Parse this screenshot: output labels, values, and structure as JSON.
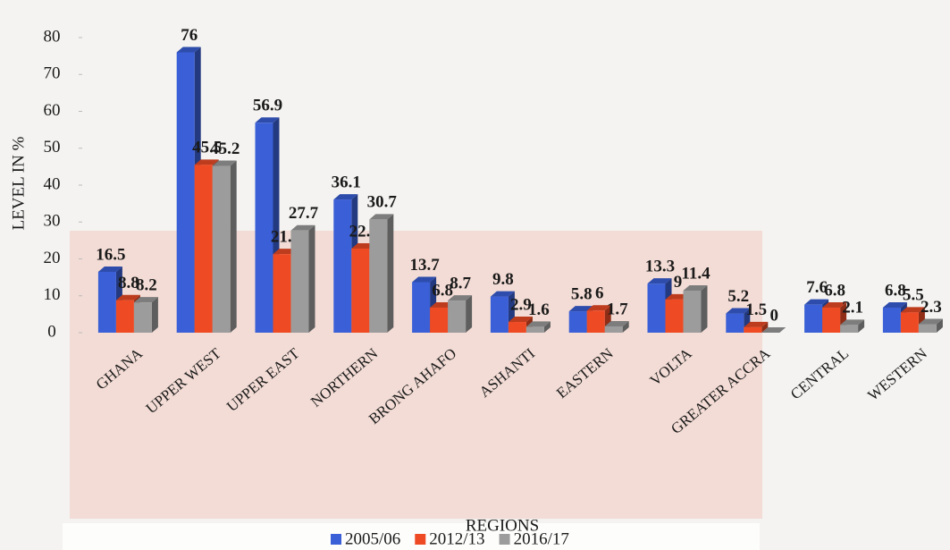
{
  "chart_data": {
    "type": "bar",
    "x_label": "REGIONS",
    "y_label": "LEVEL IN %",
    "categories": [
      "GHANA",
      "UPPER WEST",
      "UPPER EAST",
      "NORTHERN",
      "BRONG AHAFO",
      "ASHANTI",
      "EASTERN",
      "VOLTA",
      "GREATER ACCRA",
      "CENTRAL",
      "WESTERN"
    ],
    "series": [
      {
        "name": "2005/06",
        "color": "#3a5fd6",
        "values": [
          16.5,
          76,
          56.9,
          36.1,
          13.7,
          9.8,
          5.8,
          13.3,
          5.2,
          7.6,
          6.8
        ]
      },
      {
        "name": "2012/13",
        "color": "#ee4b25",
        "values": [
          8.8,
          45.5,
          21.3,
          22.8,
          6.8,
          2.9,
          6,
          9,
          1.5,
          6.8,
          5.5
        ]
      },
      {
        "name": "2016/17",
        "color": "#9c9c9c",
        "values": [
          8.2,
          45.2,
          27.7,
          30.7,
          8.7,
          1.6,
          1.7,
          11.4,
          0,
          2.1,
          2.3
        ]
      }
    ],
    "ylim": [
      0,
      80
    ],
    "yticks": [
      0,
      10,
      20,
      30,
      40,
      50,
      60,
      70,
      80
    ],
    "legend": "bottom"
  }
}
